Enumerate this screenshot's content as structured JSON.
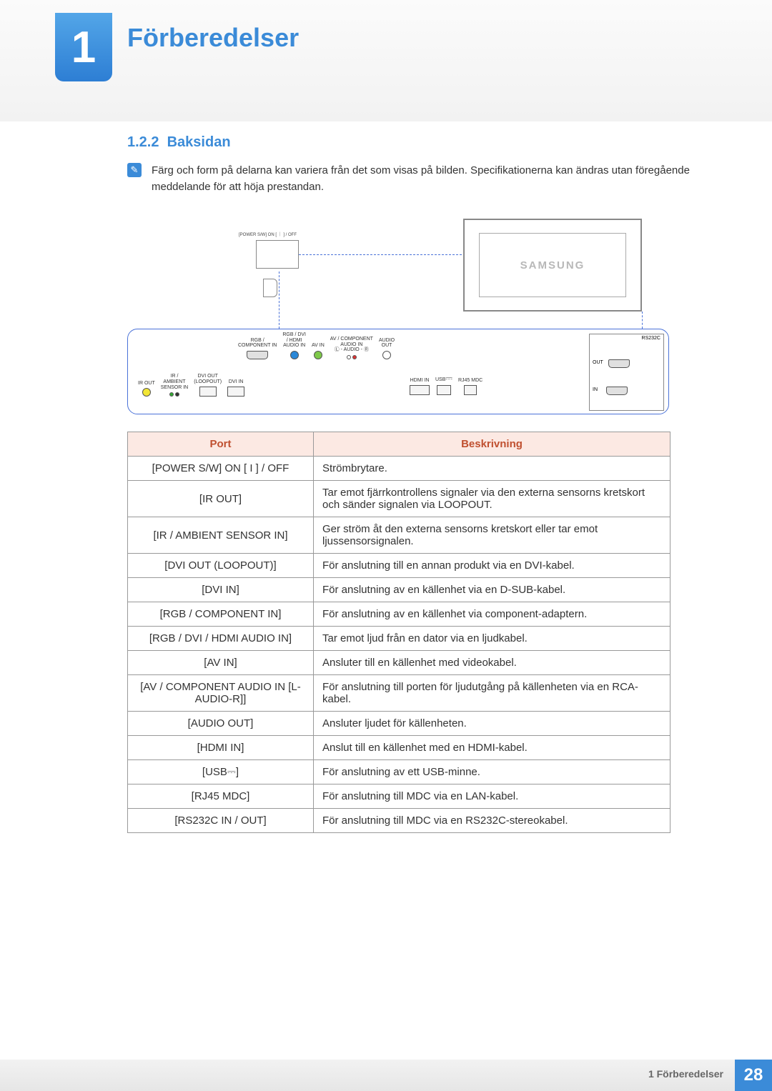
{
  "chapter": {
    "number": "1",
    "title": "Förberedelser"
  },
  "section": {
    "number": "1.2.2",
    "title": "Baksidan"
  },
  "note": "Färg och form på delarna kan variera från det som visas på bilden. Specifikationerna kan ändras utan föregående meddelande för att höja prestandan.",
  "diagram": {
    "monitor_brand": "SAMSUNG",
    "power_switch_label": "[POWER S/W] ON [ ｜ ] / OFF",
    "port_labels": {
      "ir_out": "IR OUT",
      "ir_sensor": "IR /\nAMBIENT\nSENSOR IN",
      "dvi_out": "DVI OUT\n(LOOPOUT)",
      "dvi_in": "DVI IN",
      "rgb_comp": "RGB /\nCOMPONENT IN",
      "rgb_dvi_hdmi": "RGB / DVI\n/ HDMI\nAUDIO IN",
      "av_in": "AV IN",
      "av_comp_audio": "AV / COMPONENT\nAUDIO IN\nⓁ - AUDIO - Ⓡ",
      "audio_out": "AUDIO\nOUT",
      "hdmi_in": "HDMI IN",
      "usb": "USB",
      "rj45": "RJ45 MDC",
      "rs232c": "RS232C",
      "rs_out": "OUT",
      "rs_in": "IN"
    }
  },
  "table": {
    "headers": {
      "port": "Port",
      "desc": "Beskrivning"
    },
    "rows": [
      {
        "port": "[POWER S/W] ON [ I ] / OFF",
        "desc": "Strömbrytare."
      },
      {
        "port": "[IR OUT]",
        "desc": "Tar emot fjärrkontrollens signaler via den externa sensorns kretskort och sänder signalen via LOOPOUT."
      },
      {
        "port": "[IR / AMBIENT SENSOR IN]",
        "desc": "Ger ström åt den externa sensorns kretskort eller tar emot ljussensorsignalen."
      },
      {
        "port": "[DVI OUT (LOOPOUT)]",
        "desc": "För anslutning till en annan produkt via en DVI-kabel."
      },
      {
        "port": "[DVI IN]",
        "desc": "För anslutning av en källenhet via en D-SUB-kabel."
      },
      {
        "port": "[RGB / COMPONENT IN]",
        "desc": "För anslutning av en källenhet via component-adaptern."
      },
      {
        "port": "[RGB / DVI / HDMI AUDIO IN]",
        "desc": "Tar emot ljud från en dator via en ljudkabel."
      },
      {
        "port": "[AV IN]",
        "desc": "Ansluter till en källenhet med videokabel."
      },
      {
        "port": "[AV / COMPONENT AUDIO IN [L-AUDIO-R]]",
        "desc": "För anslutning till porten för ljudutgång på källenheten via en RCA-kabel."
      },
      {
        "port": "[AUDIO OUT]",
        "desc": "Ansluter ljudet för källenheten."
      },
      {
        "port": "[HDMI IN]",
        "desc": "Anslut till en källenhet med en HDMI-kabel."
      },
      {
        "port": "[USB⎓]",
        "desc": "För anslutning av ett USB-minne."
      },
      {
        "port": "[RJ45 MDC]",
        "desc": "För anslutning till MDC via en LAN-kabel."
      },
      {
        "port": "[RS232C IN / OUT]",
        "desc": "För anslutning till MDC via en RS232C-stereokabel."
      }
    ],
    "colors": {
      "header_bg": "#fce9e3",
      "header_text": "#c05030",
      "border": "#999999"
    }
  },
  "footer": {
    "text": "1 Förberedelser",
    "page": "28"
  },
  "colors": {
    "accent": "#3b8bd8",
    "band_top": "#fbfbfb",
    "band_bot": "#f2f2f2"
  }
}
